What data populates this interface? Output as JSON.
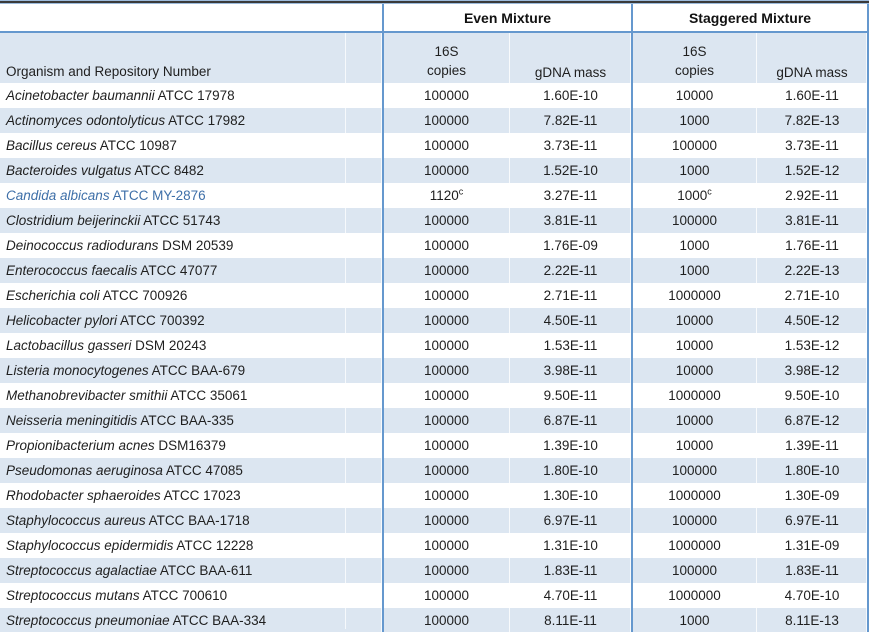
{
  "table": {
    "group_headers": [
      {
        "label": "Even Mixture"
      },
      {
        "label": "Staggered Mixture"
      }
    ],
    "columns": {
      "organism": "Organism and Repository Number",
      "copies_line1": "16S",
      "copies_line2": "copies",
      "gdna": "gDNA mass"
    },
    "rows": [
      {
        "organism": "Acinetobacter baumannii",
        "id": "ATCC 17978",
        "even_copies": "100000",
        "even_gdna": "1.60E-10",
        "stag_copies": "10000",
        "stag_gdna": "1.60E-11"
      },
      {
        "organism": "Actinomyces odontolyticus",
        "id": "ATCC 17982",
        "even_copies": "100000",
        "even_gdna": "7.82E-11",
        "stag_copies": "1000",
        "stag_gdna": "7.82E-13"
      },
      {
        "organism": "Bacillus cereus",
        "id": "ATCC 10987",
        "even_copies": "100000",
        "even_gdna": "3.73E-11",
        "stag_copies": "100000",
        "stag_gdna": "3.73E-11"
      },
      {
        "organism": "Bacteroides vulgatus",
        "id": "ATCC 8482",
        "even_copies": "100000",
        "even_gdna": "1.52E-10",
        "stag_copies": "1000",
        "stag_gdna": "1.52E-12"
      },
      {
        "organism": "Candida albicans",
        "id": "ATCC MY-2876",
        "even_copies": "1120",
        "even_sup": "c",
        "even_gdna": "3.27E-11",
        "stag_copies": "1000",
        "stag_sup": "c",
        "stag_gdna": "2.92E-11",
        "highlight": true
      },
      {
        "organism": "Clostridium beijerinckii",
        "id": "ATCC 51743",
        "even_copies": "100000",
        "even_gdna": "3.81E-11",
        "stag_copies": "100000",
        "stag_gdna": "3.81E-11"
      },
      {
        "organism": "Deinococcus radiodurans",
        "id": "DSM 20539",
        "even_copies": "100000",
        "even_gdna": "1.76E-09",
        "stag_copies": "1000",
        "stag_gdna": "1.76E-11"
      },
      {
        "organism": "Enterococcus faecalis",
        "id": "ATCC 47077",
        "even_copies": "100000",
        "even_gdna": "2.22E-11",
        "stag_copies": "1000",
        "stag_gdna": "2.22E-13"
      },
      {
        "organism": "Escherichia coli",
        "id": "ATCC 700926",
        "even_copies": "100000",
        "even_gdna": "2.71E-11",
        "stag_copies": "1000000",
        "stag_gdna": "2.71E-10"
      },
      {
        "organism": "Helicobacter pylori",
        "id": "ATCC 700392",
        "even_copies": "100000",
        "even_gdna": "4.50E-11",
        "stag_copies": "10000",
        "stag_gdna": "4.50E-12"
      },
      {
        "organism": "Lactobacillus gasseri",
        "id": "DSM 20243",
        "even_copies": "100000",
        "even_gdna": "1.53E-11",
        "stag_copies": "10000",
        "stag_gdna": "1.53E-12"
      },
      {
        "organism": "Listeria monocytogenes",
        "id": "ATCC BAA-679",
        "even_copies": "100000",
        "even_gdna": "3.98E-11",
        "stag_copies": "10000",
        "stag_gdna": "3.98E-12"
      },
      {
        "organism": "Methanobrevibacter smithii",
        "id": "ATCC 35061",
        "even_copies": "100000",
        "even_gdna": "9.50E-11",
        "stag_copies": "1000000",
        "stag_gdna": "9.50E-10"
      },
      {
        "organism": "Neisseria meningitidis",
        "id": "ATCC BAA-335",
        "even_copies": "100000",
        "even_gdna": "6.87E-11",
        "stag_copies": "10000",
        "stag_gdna": "6.87E-12"
      },
      {
        "organism": "Propionibacterium acnes",
        "id": "DSM16379",
        "even_copies": "100000",
        "even_gdna": "1.39E-10",
        "stag_copies": "10000",
        "stag_gdna": "1.39E-11"
      },
      {
        "organism": "Pseudomonas aeruginosa",
        "id": "ATCC 47085",
        "even_copies": "100000",
        "even_gdna": "1.80E-10",
        "stag_copies": "100000",
        "stag_gdna": "1.80E-10"
      },
      {
        "organism": "Rhodobacter sphaeroides",
        "id": "ATCC 17023",
        "even_copies": "100000",
        "even_gdna": "1.30E-10",
        "stag_copies": "1000000",
        "stag_gdna": "1.30E-09"
      },
      {
        "organism": "Staphylococcus aureus",
        "id": "ATCC BAA-1718",
        "even_copies": "100000",
        "even_gdna": "6.97E-11",
        "stag_copies": "100000",
        "stag_gdna": "6.97E-11"
      },
      {
        "organism": "Staphylococcus epidermidis",
        "id": "ATCC 12228",
        "even_copies": "100000",
        "even_gdna": "1.31E-10",
        "stag_copies": "1000000",
        "stag_gdna": "1.31E-09"
      },
      {
        "organism": "Streptococcus agalactiae",
        "id": "ATCC BAA-611",
        "even_copies": "100000",
        "even_gdna": "1.83E-11",
        "stag_copies": "100000",
        "stag_gdna": "1.83E-11"
      },
      {
        "organism": "Streptococcus mutans",
        "id": "ATCC 700610",
        "even_copies": "100000",
        "even_gdna": "4.70E-11",
        "stag_copies": "1000000",
        "stag_gdna": "4.70E-10"
      },
      {
        "organism": "Streptococcus pneumoniae",
        "id": "ATCC BAA-334",
        "even_copies": "100000",
        "even_gdna": "8.11E-11",
        "stag_copies": "1000",
        "stag_gdna": "8.11E-13"
      }
    ]
  },
  "colors": {
    "row_band": "#dce6f1",
    "border_blue": "#6598ce",
    "gridline_white": "#ffffff",
    "rule_dark": "#3a3a3a",
    "rule_blue_edge": "#9dbbdc",
    "highlight_text": "#3e6fa8",
    "text": "#1f1f1f"
  }
}
